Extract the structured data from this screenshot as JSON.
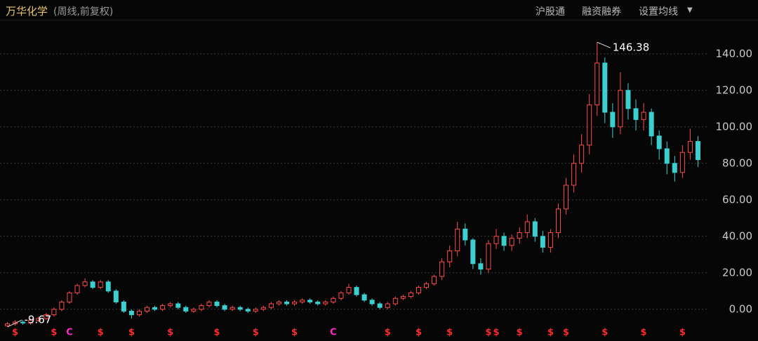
{
  "toolbar": [
    "沪股通",
    "融资融券",
    "设置均线"
  ],
  "chart_data": {
    "type": "candlestick",
    "title": "万华化学",
    "subtitle": "(周线,前复权)",
    "up_color": "#ff4a4a",
    "down_color": "#3ccfd0",
    "ylim": [
      -12,
      158
    ],
    "yticks": [
      {
        "value": 0,
        "label": "0.00"
      },
      {
        "value": 20,
        "label": "20.00"
      },
      {
        "value": 40,
        "label": "40.00"
      },
      {
        "value": 60,
        "label": "60.00"
      },
      {
        "value": 80,
        "label": "80.00"
      },
      {
        "value": 100,
        "label": "100.00"
      },
      {
        "value": 120,
        "label": "120.00"
      },
      {
        "value": 140,
        "label": "140.00"
      }
    ],
    "grid": true,
    "ohlc": [
      [
        -9,
        -7,
        -9.67,
        -8
      ],
      [
        -8,
        -6,
        -9,
        -7
      ],
      [
        -7,
        -6,
        -8.5,
        -7.5
      ],
      [
        -7.5,
        -5,
        -8.5,
        -6
      ],
      [
        -6,
        -4,
        -7,
        -5
      ],
      [
        -5,
        -2,
        -6,
        -3
      ],
      [
        -3,
        1,
        -4,
        0
      ],
      [
        0,
        5,
        -1,
        4
      ],
      [
        4,
        10,
        3,
        9
      ],
      [
        9,
        14,
        8,
        13
      ],
      [
        13,
        17,
        12,
        15
      ],
      [
        15,
        16,
        11,
        12
      ],
      [
        12,
        16,
        11,
        15
      ],
      [
        15,
        16,
        9,
        10
      ],
      [
        10,
        11,
        3,
        4
      ],
      [
        4,
        5,
        -2,
        -1
      ],
      [
        -1,
        0,
        -5,
        -3
      ],
      [
        -3,
        0,
        -4,
        -1
      ],
      [
        -1,
        2,
        -2,
        1
      ],
      [
        1,
        2,
        -1,
        0
      ],
      [
        0,
        3,
        -1,
        2
      ],
      [
        2,
        4,
        1,
        3
      ],
      [
        3,
        4,
        0,
        1
      ],
      [
        1,
        2,
        -2,
        -1
      ],
      [
        -1,
        1,
        -2,
        0
      ],
      [
        0,
        3,
        -1,
        2
      ],
      [
        2,
        5,
        1,
        4
      ],
      [
        4,
        5,
        1,
        2
      ],
      [
        2,
        3,
        -1,
        0
      ],
      [
        0,
        2,
        -1,
        1
      ],
      [
        1,
        2,
        -1,
        0
      ],
      [
        0,
        1,
        -2,
        -1
      ],
      [
        -1,
        1,
        -2,
        0
      ],
      [
        0,
        2,
        -1,
        1
      ],
      [
        1,
        4,
        0,
        3
      ],
      [
        3,
        5,
        2,
        4
      ],
      [
        4,
        5,
        2,
        3
      ],
      [
        3,
        5,
        2,
        4
      ],
      [
        4,
        6,
        3,
        5
      ],
      [
        5,
        6,
        3,
        4
      ],
      [
        4,
        5,
        2,
        3
      ],
      [
        3,
        5,
        2,
        4
      ],
      [
        4,
        7,
        3,
        6
      ],
      [
        6,
        10,
        5,
        9
      ],
      [
        9,
        14,
        8,
        12
      ],
      [
        12,
        13,
        7,
        8
      ],
      [
        8,
        9,
        4,
        5
      ],
      [
        5,
        6,
        2,
        3
      ],
      [
        3,
        4,
        0,
        1
      ],
      [
        1,
        4,
        0,
        3
      ],
      [
        3,
        7,
        2,
        6
      ],
      [
        6,
        8,
        5,
        7
      ],
      [
        7,
        10,
        6,
        9
      ],
      [
        9,
        13,
        8,
        12
      ],
      [
        12,
        15,
        11,
        14
      ],
      [
        14,
        19,
        13,
        18
      ],
      [
        18,
        28,
        16,
        26
      ],
      [
        26,
        35,
        23,
        32
      ],
      [
        32,
        48,
        29,
        44
      ],
      [
        44,
        47,
        35,
        38
      ],
      [
        38,
        39,
        22,
        25
      ],
      [
        25,
        28,
        19,
        22
      ],
      [
        22,
        38,
        20,
        36
      ],
      [
        36,
        44,
        33,
        40
      ],
      [
        40,
        42,
        32,
        35
      ],
      [
        35,
        41,
        32,
        39
      ],
      [
        39,
        45,
        36,
        42
      ],
      [
        42,
        52,
        39,
        48
      ],
      [
        48,
        50,
        37,
        40
      ],
      [
        40,
        43,
        31,
        34
      ],
      [
        34,
        44,
        31,
        42
      ],
      [
        42,
        58,
        39,
        55
      ],
      [
        55,
        72,
        52,
        68
      ],
      [
        68,
        85,
        64,
        80
      ],
      [
        80,
        96,
        75,
        90
      ],
      [
        90,
        118,
        85,
        112
      ],
      [
        112,
        146.38,
        106,
        135
      ],
      [
        135,
        138,
        102,
        108
      ],
      [
        108,
        113,
        94,
        100
      ],
      [
        100,
        130,
        96,
        120
      ],
      [
        120,
        124,
        104,
        110
      ],
      [
        110,
        115,
        98,
        104
      ],
      [
        104,
        113,
        98,
        108
      ],
      [
        108,
        110,
        90,
        95
      ],
      [
        95,
        98,
        82,
        88
      ],
      [
        88,
        92,
        74,
        80
      ],
      [
        80,
        84,
        70,
        75
      ],
      [
        75,
        90,
        72,
        86
      ],
      [
        86,
        99,
        82,
        92
      ],
      [
        92,
        95,
        78,
        82
      ]
    ],
    "annotations": [
      {
        "value": 146.38,
        "index": 76
      },
      {
        "value": -9.67,
        "index": 0
      }
    ],
    "markers": [
      {
        "label": "$",
        "index": 1,
        "color": "#ff2a2a"
      },
      {
        "label": "$",
        "index": 6,
        "color": "#ff2a2a"
      },
      {
        "label": "C",
        "index": 8,
        "color": "#ff2ad0"
      },
      {
        "label": "$",
        "index": 12,
        "color": "#ff2a2a"
      },
      {
        "label": "$",
        "index": 16,
        "color": "#ff2a2a"
      },
      {
        "label": "$",
        "index": 21,
        "color": "#ff2a2a"
      },
      {
        "label": "$",
        "index": 27,
        "color": "#ff2a2a"
      },
      {
        "label": "$",
        "index": 32,
        "color": "#ff2a2a"
      },
      {
        "label": "$",
        "index": 37,
        "color": "#ff2a2a"
      },
      {
        "label": "C",
        "index": 42,
        "color": "#ff2ad0"
      },
      {
        "label": "$",
        "index": 49,
        "color": "#ff2a2a"
      },
      {
        "label": "$",
        "index": 53,
        "color": "#ff2a2a"
      },
      {
        "label": "$",
        "index": 57,
        "color": "#ff2a2a"
      },
      {
        "label": "$",
        "index": 62,
        "color": "#ff2a2a"
      },
      {
        "label": "$",
        "index": 63,
        "color": "#ff2a2a"
      },
      {
        "label": "$",
        "index": 66,
        "color": "#ff2a2a"
      },
      {
        "label": "$",
        "index": 70,
        "color": "#ff2a2a"
      },
      {
        "label": "$",
        "index": 72,
        "color": "#ff2a2a"
      },
      {
        "label": "$",
        "index": 77,
        "color": "#ff2a2a"
      },
      {
        "label": "$",
        "index": 82,
        "color": "#ff2a2a"
      },
      {
        "label": "$",
        "index": 87,
        "color": "#ff2a2a"
      }
    ]
  }
}
